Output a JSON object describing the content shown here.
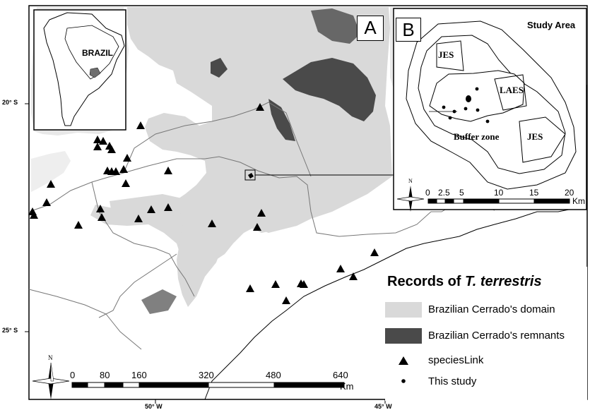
{
  "panels": {
    "main_label": "A",
    "inset_label": "B"
  },
  "country_label": "BRAZIL",
  "study_area": {
    "title": "Study Area",
    "jes_north": "JES",
    "laes": "LAES",
    "buffer_zone": "Buffer zone",
    "jes_south": "JES",
    "scale_ticks": [
      "0",
      "2.5",
      "5",
      "10",
      "15",
      "20"
    ],
    "scale_unit": "Km",
    "north": "N"
  },
  "axes": {
    "lat_labels": [
      "20° S",
      "25° S"
    ],
    "lon_labels": [
      "50° W",
      "45° W"
    ]
  },
  "main_scale": {
    "ticks": [
      "0",
      "80",
      "160",
      "320",
      "480",
      "640"
    ],
    "unit": "Km",
    "north": "N"
  },
  "legend": {
    "title_prefix": "Records of ",
    "title_species": "T. terrestris",
    "items": [
      {
        "label": "Brazilian Cerrado's domain",
        "color": "#d9d9d9"
      },
      {
        "label": "Brazilian Cerrado's remnants",
        "color": "#4a4a4a"
      },
      {
        "label": "speciesLink",
        "icon": "triangle-marker"
      },
      {
        "label": "This study",
        "icon": "dot-marker"
      }
    ]
  },
  "colors": {
    "domain": "#d9d9d9",
    "remnants": "#4a4a4a",
    "sea": "#ffffff",
    "border": "#000000"
  }
}
